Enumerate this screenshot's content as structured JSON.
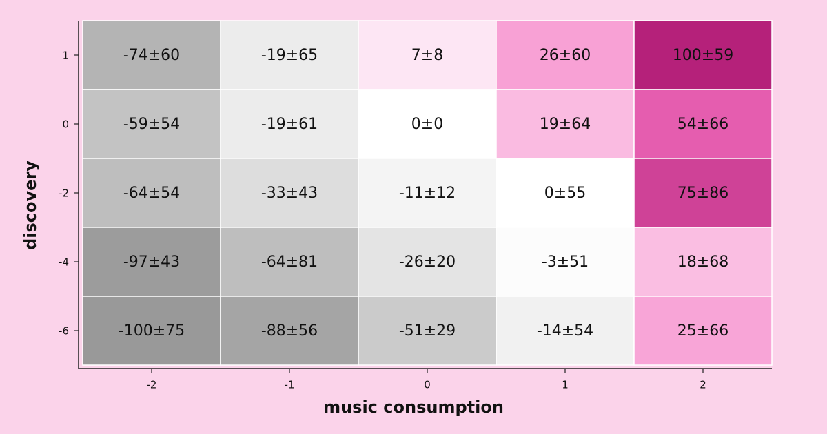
{
  "chart_data": {
    "type": "heatmap",
    "x_label": "music consumption",
    "y_label": "discovery",
    "x_categories": [
      -2,
      -1,
      0,
      1,
      2
    ],
    "y_categories": [
      1,
      0,
      -2,
      -4,
      -6
    ],
    "values": [
      [
        -74,
        -19,
        7,
        26,
        100
      ],
      [
        -59,
        -19,
        0,
        19,
        54
      ],
      [
        -64,
        -33,
        -11,
        0,
        75
      ],
      [
        -97,
        -64,
        -26,
        -3,
        18
      ],
      [
        -100,
        -88,
        -51,
        -14,
        25
      ]
    ],
    "errors": [
      [
        60,
        65,
        8,
        60,
        59
      ],
      [
        54,
        61,
        0,
        64,
        66
      ],
      [
        54,
        43,
        12,
        55,
        86
      ],
      [
        43,
        81,
        20,
        51,
        68
      ],
      [
        75,
        56,
        29,
        54,
        66
      ]
    ],
    "value_labels": [
      [
        "-74±60",
        "-19±65",
        "7±8",
        "26±60",
        "100±59"
      ],
      [
        "-59±54",
        "-19±61",
        "0±0",
        "19±64",
        "54±66"
      ],
      [
        "-64±54",
        "-33±43",
        "-11±12",
        "0±55",
        "75±86"
      ],
      [
        "-97±43",
        "-64±81",
        "-26±20",
        "-3±51",
        "18±68"
      ],
      [
        "-100±75",
        "-88±56",
        "-51±29",
        "-14±54",
        "25±66"
      ]
    ],
    "colorscale": [
      [
        -100,
        "#999999"
      ],
      [
        0,
        "#ffffff"
      ],
      [
        40,
        "#f46fbf"
      ],
      [
        100,
        "#b5217a"
      ]
    ]
  }
}
